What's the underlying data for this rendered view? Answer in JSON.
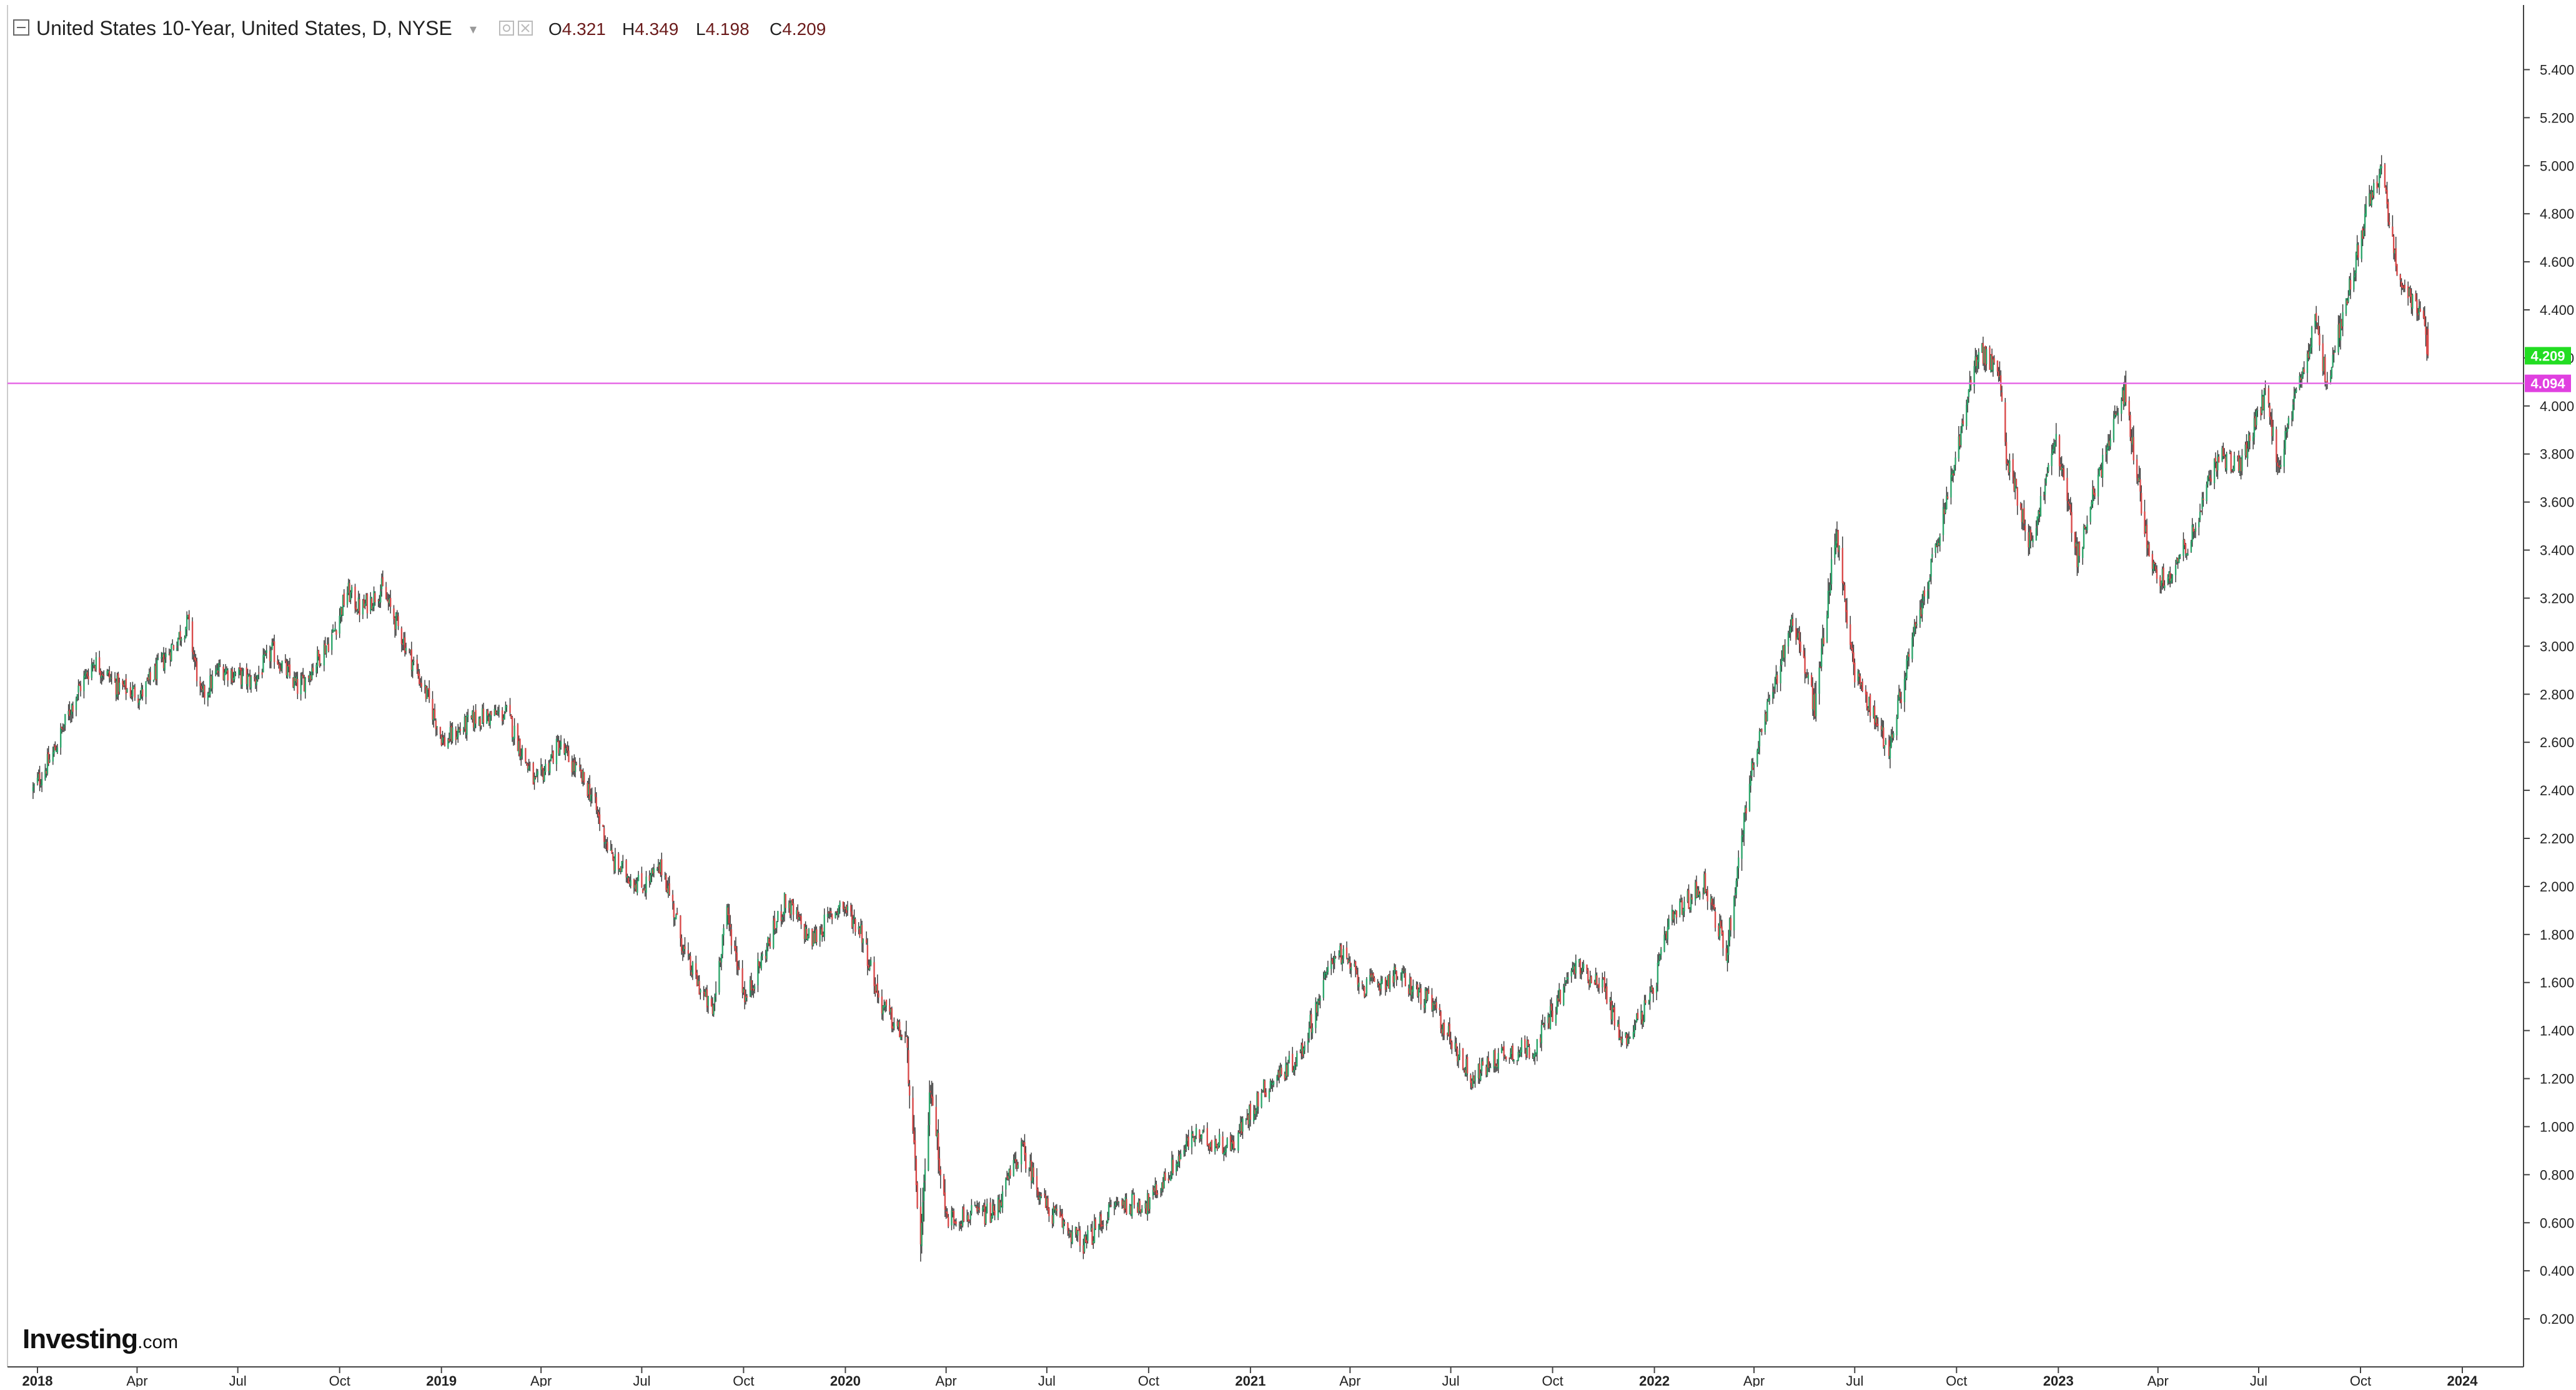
{
  "header": {
    "title": "United States 10-Year, United States, D, NYSE",
    "ohlc": [
      {
        "key": "O",
        "value": "4.321"
      },
      {
        "key": "H",
        "value": "4.349"
      },
      {
        "key": "L",
        "value": "4.198"
      },
      {
        "key": "C",
        "value": "4.209"
      }
    ]
  },
  "logo": {
    "main": "Investing",
    "sub": ".com"
  },
  "price_tags": {
    "last": {
      "label": "4.209",
      "value": 4.209,
      "color": "#22dd22"
    },
    "level": {
      "label": "4.094",
      "value": 4.094,
      "color": "#e040e0"
    }
  },
  "colors": {
    "up": "#2ea66c",
    "down": "#d94a4a",
    "wick": "#333333",
    "hline": "#e66be6"
  },
  "chart_data": {
    "type": "line",
    "title": "United States 10-Year, United States, D, NYSE",
    "xlabel": "",
    "ylabel": "",
    "ylim": [
      0.0,
      5.5
    ],
    "grid": false,
    "y_ticks": [
      "0.200",
      "0.400",
      "0.600",
      "0.800",
      "1.000",
      "1.200",
      "1.400",
      "1.600",
      "1.800",
      "2.000",
      "2.200",
      "2.400",
      "2.600",
      "2.800",
      "3.000",
      "3.200",
      "3.400",
      "3.600",
      "3.800",
      "4.000",
      "4.200",
      "4.400",
      "4.600",
      "4.800",
      "5.000",
      "5.200",
      "5.400"
    ],
    "x_ticks": [
      {
        "label": "2018",
        "year": true
      },
      {
        "label": "Apr",
        "year": false
      },
      {
        "label": "Jul",
        "year": false
      },
      {
        "label": "Oct",
        "year": false
      },
      {
        "label": "2019",
        "year": true
      },
      {
        "label": "Apr",
        "year": false
      },
      {
        "label": "Jul",
        "year": false
      },
      {
        "label": "Oct",
        "year": false
      },
      {
        "label": "2020",
        "year": true
      },
      {
        "label": "Apr",
        "year": false
      },
      {
        "label": "Jul",
        "year": false
      },
      {
        "label": "Oct",
        "year": false
      },
      {
        "label": "2021",
        "year": true
      },
      {
        "label": "Apr",
        "year": false
      },
      {
        "label": "Jul",
        "year": false
      },
      {
        "label": "Oct",
        "year": false
      },
      {
        "label": "2022",
        "year": true
      },
      {
        "label": "Apr",
        "year": false
      },
      {
        "label": "Jul",
        "year": false
      },
      {
        "label": "Oct",
        "year": false
      },
      {
        "label": "2023",
        "year": true
      },
      {
        "label": "Apr",
        "year": false
      },
      {
        "label": "Jul",
        "year": false
      },
      {
        "label": "Oct",
        "year": false
      },
      {
        "label": "2024",
        "year": true
      }
    ],
    "horizontal_line": 4.094,
    "series": [
      {
        "values": [
          {
            "date": "2017-12-28",
            "y": 2.4
          },
          {
            "date": "2018-01-15",
            "y": 2.55
          },
          {
            "date": "2018-02-05",
            "y": 2.8
          },
          {
            "date": "2018-02-21",
            "y": 2.94
          },
          {
            "date": "2018-03-15",
            "y": 2.83
          },
          {
            "date": "2018-04-05",
            "y": 2.8
          },
          {
            "date": "2018-05-17",
            "y": 3.1
          },
          {
            "date": "2018-05-29",
            "y": 2.78
          },
          {
            "date": "2018-06-15",
            "y": 2.91
          },
          {
            "date": "2018-07-15",
            "y": 2.85
          },
          {
            "date": "2018-08-01",
            "y": 2.98
          },
          {
            "date": "2018-08-25",
            "y": 2.82
          },
          {
            "date": "2018-09-25",
            "y": 3.05
          },
          {
            "date": "2018-10-08",
            "y": 3.23
          },
          {
            "date": "2018-10-20",
            "y": 3.15
          },
          {
            "date": "2018-11-08",
            "y": 3.24
          },
          {
            "date": "2018-12-01",
            "y": 2.99
          },
          {
            "date": "2018-12-20",
            "y": 2.78
          },
          {
            "date": "2019-01-03",
            "y": 2.6
          },
          {
            "date": "2019-02-01",
            "y": 2.7
          },
          {
            "date": "2019-03-01",
            "y": 2.72
          },
          {
            "date": "2019-03-27",
            "y": 2.42
          },
          {
            "date": "2019-04-17",
            "y": 2.59
          },
          {
            "date": "2019-05-15",
            "y": 2.4
          },
          {
            "date": "2019-06-05",
            "y": 2.1
          },
          {
            "date": "2019-07-01",
            "y": 2.0
          },
          {
            "date": "2019-07-20",
            "y": 2.08
          },
          {
            "date": "2019-08-10",
            "y": 1.7
          },
          {
            "date": "2019-09-03",
            "y": 1.47
          },
          {
            "date": "2019-09-15",
            "y": 1.9
          },
          {
            "date": "2019-10-03",
            "y": 1.53
          },
          {
            "date": "2019-11-08",
            "y": 1.94
          },
          {
            "date": "2019-12-01",
            "y": 1.77
          },
          {
            "date": "2019-12-28",
            "y": 1.93
          },
          {
            "date": "2020-01-15",
            "y": 1.82
          },
          {
            "date": "2020-02-01",
            "y": 1.52
          },
          {
            "date": "2020-02-25",
            "y": 1.35
          },
          {
            "date": "2020-03-09",
            "y": 0.5
          },
          {
            "date": "2020-03-18",
            "y": 1.18
          },
          {
            "date": "2020-04-01",
            "y": 0.62
          },
          {
            "date": "2020-05-15",
            "y": 0.64
          },
          {
            "date": "2020-06-08",
            "y": 0.91
          },
          {
            "date": "2020-07-01",
            "y": 0.66
          },
          {
            "date": "2020-08-04",
            "y": 0.51
          },
          {
            "date": "2020-09-01",
            "y": 0.68
          },
          {
            "date": "2020-10-01",
            "y": 0.68
          },
          {
            "date": "2020-11-10",
            "y": 0.96
          },
          {
            "date": "2020-12-15",
            "y": 0.92
          },
          {
            "date": "2021-01-12",
            "y": 1.15
          },
          {
            "date": "2021-02-15",
            "y": 1.3
          },
          {
            "date": "2021-03-19",
            "y": 1.74
          },
          {
            "date": "2021-04-15",
            "y": 1.58
          },
          {
            "date": "2021-05-15",
            "y": 1.63
          },
          {
            "date": "2021-06-15",
            "y": 1.5
          },
          {
            "date": "2021-07-20",
            "y": 1.2
          },
          {
            "date": "2021-08-15",
            "y": 1.3
          },
          {
            "date": "2021-09-15",
            "y": 1.33
          },
          {
            "date": "2021-10-21",
            "y": 1.67
          },
          {
            "date": "2021-11-15",
            "y": 1.6
          },
          {
            "date": "2021-12-03",
            "y": 1.35
          },
          {
            "date": "2021-12-28",
            "y": 1.52
          },
          {
            "date": "2022-01-15",
            "y": 1.85
          },
          {
            "date": "2022-02-15",
            "y": 2.02
          },
          {
            "date": "2022-03-07",
            "y": 1.72
          },
          {
            "date": "2022-03-28",
            "y": 2.45
          },
          {
            "date": "2022-04-20",
            "y": 2.85
          },
          {
            "date": "2022-05-06",
            "y": 3.12
          },
          {
            "date": "2022-05-26",
            "y": 2.74
          },
          {
            "date": "2022-06-14",
            "y": 3.48
          },
          {
            "date": "2022-07-01",
            "y": 2.89
          },
          {
            "date": "2022-08-01",
            "y": 2.57
          },
          {
            "date": "2022-08-20",
            "y": 2.98
          },
          {
            "date": "2022-09-15",
            "y": 3.45
          },
          {
            "date": "2022-10-21",
            "y": 4.24
          },
          {
            "date": "2022-11-08",
            "y": 4.14
          },
          {
            "date": "2022-11-15",
            "y": 3.8
          },
          {
            "date": "2022-12-07",
            "y": 3.42
          },
          {
            "date": "2022-12-30",
            "y": 3.87
          },
          {
            "date": "2023-01-18",
            "y": 3.37
          },
          {
            "date": "2023-02-15",
            "y": 3.85
          },
          {
            "date": "2023-03-02",
            "y": 4.06
          },
          {
            "date": "2023-03-24",
            "y": 3.38
          },
          {
            "date": "2023-04-06",
            "y": 3.27
          },
          {
            "date": "2023-05-01",
            "y": 3.45
          },
          {
            "date": "2023-05-26",
            "y": 3.8
          },
          {
            "date": "2023-06-15",
            "y": 3.75
          },
          {
            "date": "2023-07-07",
            "y": 4.05
          },
          {
            "date": "2023-07-19",
            "y": 3.75
          },
          {
            "date": "2023-08-21",
            "y": 4.34
          },
          {
            "date": "2023-09-01",
            "y": 4.1
          },
          {
            "date": "2023-10-06",
            "y": 4.8
          },
          {
            "date": "2023-10-20",
            "y": 4.99
          },
          {
            "date": "2023-11-03",
            "y": 4.57
          },
          {
            "date": "2023-11-15",
            "y": 4.45
          },
          {
            "date": "2023-11-28",
            "y": 4.33
          },
          {
            "date": "2023-12-01",
            "y": 4.209
          }
        ]
      }
    ]
  }
}
